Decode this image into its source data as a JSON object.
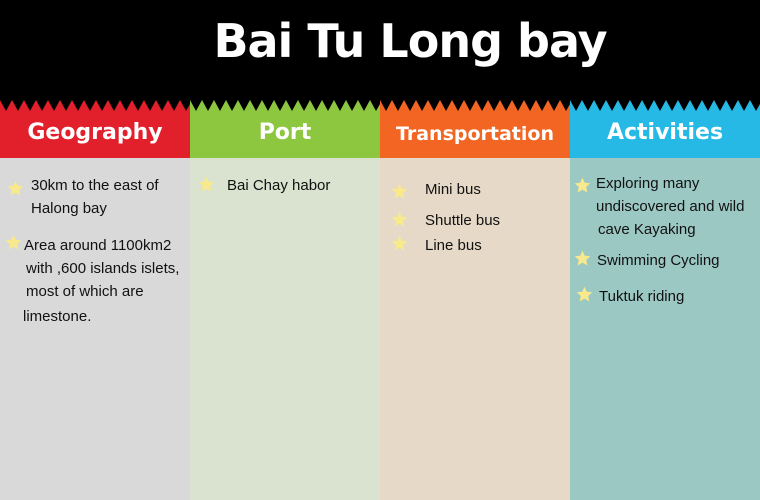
{
  "title": "Bai Tu Long bay",
  "colors": {
    "header_bg": "#000000",
    "geography_head": "#e2202c",
    "geography_body": "#d9d9d9",
    "port_head": "#8dc63f",
    "port_body": "#d9e3cf",
    "transport_head": "#f26522",
    "transport_body": "#e6d9c7",
    "activities_head": "#27b9e5",
    "activities_body": "#9cc8c4",
    "star": "#f7e98c"
  },
  "columns": [
    {
      "heading": "Geography",
      "items": [
        {
          "lines": [
            "30km to the east of",
            "Halong bay"
          ]
        },
        {
          "lines": [
            "Area around 1100km2",
            "with ,600 islands islets,",
            "most of which are",
            "limestone."
          ]
        }
      ]
    },
    {
      "heading": "Port",
      "items": [
        {
          "lines": [
            "Bai Chay habor"
          ]
        }
      ]
    },
    {
      "heading": "Transportation",
      "items": [
        {
          "lines": [
            "Mini bus"
          ]
        },
        {
          "lines": [
            "Shuttle bus"
          ]
        },
        {
          "lines": [
            "Line bus"
          ]
        }
      ]
    },
    {
      "heading": "Activities",
      "items": [
        {
          "lines": [
            "Exploring many",
            "undiscovered and wild",
            "cave  Kayaking"
          ]
        },
        {
          "lines": [
            "Swimming  Cycling"
          ]
        },
        {
          "lines": [
            "Tuktuk riding"
          ]
        }
      ]
    }
  ]
}
